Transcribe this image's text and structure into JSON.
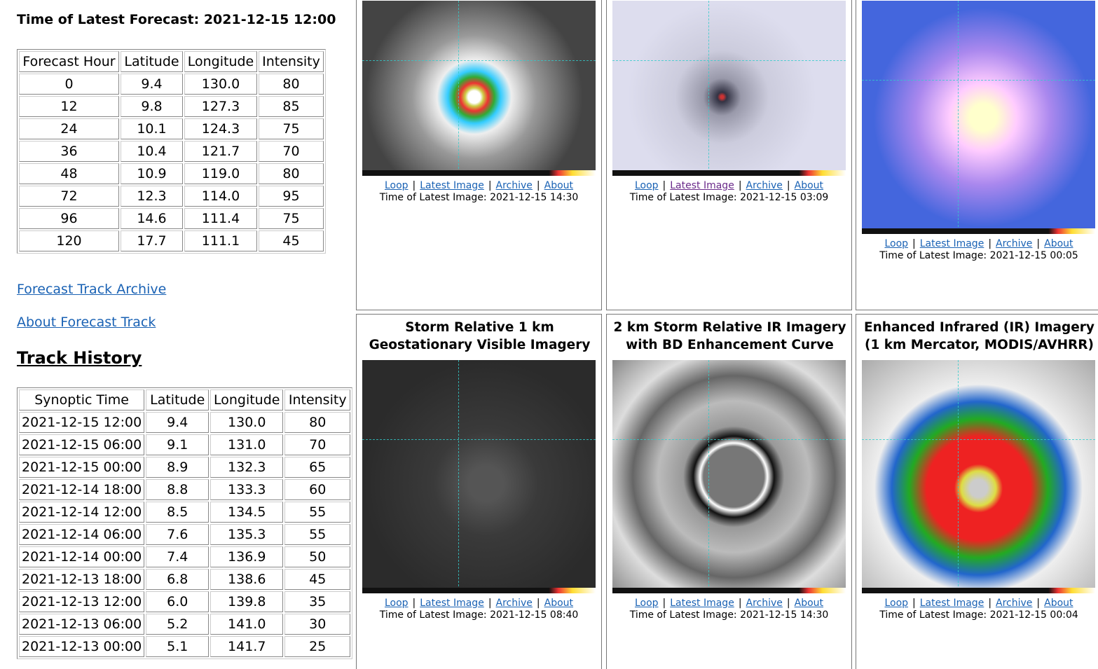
{
  "forecast": {
    "title": "Time of Latest Forecast: 2021-12-15 12:00",
    "headers": [
      "Forecast Hour",
      "Latitude",
      "Longitude",
      "Intensity"
    ],
    "rows": [
      [
        "0",
        "9.4",
        "130.0",
        "80"
      ],
      [
        "12",
        "9.8",
        "127.3",
        "85"
      ],
      [
        "24",
        "10.1",
        "124.3",
        "75"
      ],
      [
        "36",
        "10.4",
        "121.7",
        "70"
      ],
      [
        "48",
        "10.9",
        "119.0",
        "80"
      ],
      [
        "72",
        "12.3",
        "114.0",
        "95"
      ],
      [
        "96",
        "14.6",
        "111.4",
        "75"
      ],
      [
        "120",
        "17.7",
        "111.1",
        "45"
      ]
    ]
  },
  "links": [
    "Forecast Track Archive",
    "About Forecast Track"
  ],
  "track_history": {
    "title": "Track History",
    "headers": [
      "Synoptic Time",
      "Latitude",
      "Longitude",
      "Intensity"
    ],
    "rows": [
      [
        "2021-12-15 12:00",
        "9.4",
        "130.0",
        "80"
      ],
      [
        "2021-12-15 06:00",
        "9.1",
        "131.0",
        "70"
      ],
      [
        "2021-12-15 00:00",
        "8.9",
        "132.3",
        "65"
      ],
      [
        "2021-12-14 18:00",
        "8.8",
        "133.3",
        "60"
      ],
      [
        "2021-12-14 12:00",
        "8.5",
        "134.5",
        "55"
      ],
      [
        "2021-12-14 06:00",
        "7.6",
        "135.3",
        "55"
      ],
      [
        "2021-12-14 00:00",
        "7.4",
        "136.9",
        "50"
      ],
      [
        "2021-12-13 18:00",
        "6.8",
        "138.6",
        "45"
      ],
      [
        "2021-12-13 12:00",
        "6.0",
        "139.8",
        "35"
      ],
      [
        "2021-12-13 06:00",
        "5.2",
        "141.0",
        "30"
      ],
      [
        "2021-12-13 00:00",
        "5.1",
        "141.7",
        "25"
      ]
    ]
  },
  "panels": [
    {
      "links": [
        "Loop",
        "Latest Image",
        "Archive",
        "About"
      ],
      "time": "Time of Latest Image: 2021-12-15 14:30"
    },
    {
      "links": [
        "Loop",
        "Latest Image",
        "Archive",
        "About"
      ],
      "time": "Time of Latest Image: 2021-12-15 03:09"
    },
    {
      "links": [
        "Loop",
        "Latest Image",
        "Archive",
        "About"
      ],
      "time": "Time of Latest Image: 2021-12-15 00:05"
    },
    {
      "title": "Storm Relative 1 km Geostationary Visible Imagery",
      "links": [
        "Loop",
        "Latest Image",
        "Archive",
        "About"
      ],
      "time": "Time of Latest Image: 2021-12-15 08:40"
    },
    {
      "title": "2 km Storm Relative IR Imagery with BD Enhancement Curve",
      "links": [
        "Loop",
        "Latest Image",
        "Archive",
        "About"
      ],
      "time": "Time of Latest Image: 2021-12-15 14:30"
    },
    {
      "title": "Enhanced Infrared (IR) Imagery (1 km Mercator, MODIS/AVHRR)",
      "links": [
        "Loop",
        "Latest Image",
        "Archive",
        "About"
      ],
      "time": "Time of Latest Image: 2021-12-15 00:04"
    }
  ]
}
